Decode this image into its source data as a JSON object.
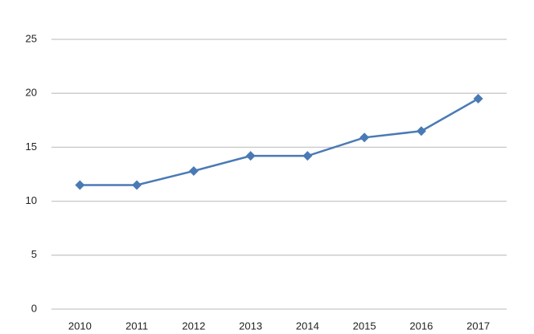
{
  "chart_data": {
    "type": "line",
    "categories": [
      "2010",
      "2011",
      "2012",
      "2013",
      "2014",
      "2015",
      "2016",
      "2017"
    ],
    "values": [
      11.5,
      11.5,
      12.8,
      14.2,
      14.2,
      15.9,
      16.5,
      19.5
    ],
    "color": "#4a7ab5",
    "ylim": [
      0,
      25
    ],
    "yticks": [
      0,
      5,
      10,
      15,
      20,
      25
    ],
    "grid": true
  }
}
